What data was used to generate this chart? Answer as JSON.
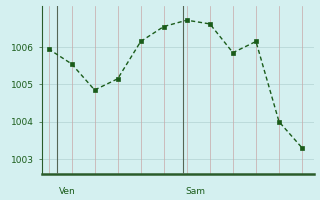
{
  "x": [
    0,
    1,
    2,
    3,
    4,
    5,
    6,
    7,
    8,
    9,
    10,
    11
  ],
  "y": [
    1005.95,
    1005.55,
    1004.85,
    1005.15,
    1006.15,
    1006.55,
    1006.72,
    1006.62,
    1005.85,
    1006.15,
    1004.0,
    1003.3
  ],
  "ven_x": 0.35,
  "sam_x": 5.85,
  "ylim": [
    1002.6,
    1007.1
  ],
  "yticks": [
    1003,
    1004,
    1005,
    1006
  ],
  "xlim": [
    -0.3,
    11.5
  ],
  "background_color": "#d4f0f0",
  "line_color": "#1a5c1a",
  "grid_color": "#b8d8d8",
  "axis_color": "#2a5c2a",
  "tick_label_color": "#1a5c1a",
  "day_label_color": "#1a5c1a",
  "markersize": 3.5,
  "linewidth": 1.0
}
